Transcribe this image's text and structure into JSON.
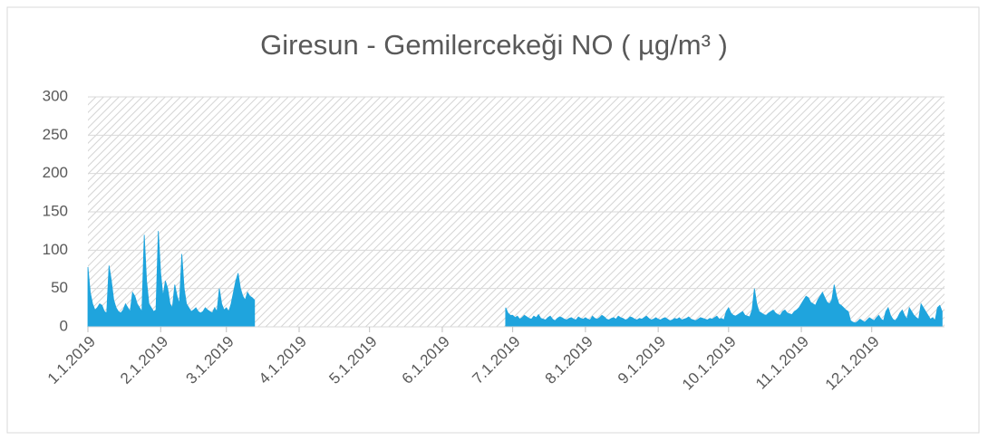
{
  "chart_data": {
    "type": "area",
    "title": "Giresun - Gemilercekeği NO ( µg/m³ )",
    "color": "#1fa4dd",
    "ylim": [
      0,
      300
    ],
    "yticks": [
      0,
      50,
      100,
      150,
      200,
      250,
      300
    ],
    "grid": true,
    "categories": [
      "1.1.2019",
      null,
      null,
      null,
      null,
      null,
      null,
      null,
      null,
      null,
      null,
      null,
      null,
      null,
      null,
      null,
      null,
      null,
      null,
      null,
      null,
      null,
      null,
      null,
      null,
      null,
      null,
      null,
      null,
      null,
      null,
      "2.1.2019",
      null,
      null,
      null,
      null,
      null,
      null,
      null,
      null,
      null,
      null,
      null,
      null,
      null,
      null,
      null,
      null,
      null,
      null,
      null,
      null,
      null,
      null,
      null,
      null,
      null,
      null,
      null,
      "3.1.2019",
      null,
      null,
      null,
      null,
      null,
      null,
      null,
      null,
      null,
      null,
      null,
      null,
      null,
      null,
      null,
      null,
      null,
      null,
      null,
      null,
      null,
      null,
      null,
      null,
      null,
      null,
      null,
      null,
      null,
      null,
      "4.1.2019",
      null,
      null,
      null,
      null,
      null,
      null,
      null,
      null,
      null,
      null,
      null,
      null,
      null,
      null,
      null,
      null,
      null,
      null,
      null,
      null,
      null,
      null,
      null,
      null,
      null,
      null,
      null,
      null,
      null,
      "5.1.2019",
      null,
      null,
      null,
      null,
      null,
      null,
      null,
      null,
      null,
      null,
      null,
      null,
      null,
      null,
      null,
      null,
      null,
      null,
      null,
      null,
      null,
      null,
      null,
      null,
      null,
      null,
      null,
      null,
      null,
      null,
      "6.1.2019",
      null,
      null,
      null,
      null,
      null,
      null,
      null,
      null,
      null,
      null,
      null,
      null,
      null,
      null,
      null,
      null,
      null,
      null,
      null,
      null,
      null,
      null,
      null,
      null,
      null,
      null,
      null,
      null,
      null,
      "7.1.2019",
      null,
      null,
      null,
      null,
      null,
      null,
      null,
      null,
      null,
      null,
      null,
      null,
      null,
      null,
      null,
      null,
      null,
      null,
      null,
      null,
      null,
      null,
      null,
      null,
      null,
      null,
      null,
      null,
      null,
      null,
      "8.1.2019",
      null,
      null,
      null,
      null,
      null,
      null,
      null,
      null,
      null,
      null,
      null,
      null,
      null,
      null,
      null,
      null,
      null,
      null,
      null,
      null,
      null,
      null,
      null,
      null,
      null,
      null,
      null,
      null,
      null,
      null,
      "9.1.2019",
      null,
      null,
      null,
      null,
      null,
      null,
      null,
      null,
      null,
      null,
      null,
      null,
      null,
      null,
      null,
      null,
      null,
      null,
      null,
      null,
      null,
      null,
      null,
      null,
      null,
      null,
      null,
      null,
      null,
      "10.1.2019",
      null,
      null,
      null,
      null,
      null,
      null,
      null,
      null,
      null,
      null,
      null,
      null,
      null,
      null,
      null,
      null,
      null,
      null,
      null,
      null,
      null,
      null,
      null,
      null,
      null,
      null,
      null,
      null,
      null,
      null,
      "11.1.2019",
      null,
      null,
      null,
      null,
      null,
      null,
      null,
      null,
      null,
      null,
      null,
      null,
      null,
      null,
      null,
      null,
      null,
      null,
      null,
      null,
      null,
      null,
      null,
      null,
      null,
      null,
      null,
      null,
      null,
      "12.1.2019",
      null,
      null,
      null,
      null,
      null,
      null,
      null,
      null,
      null,
      null,
      null,
      null,
      null,
      null,
      null,
      null,
      null,
      null,
      null,
      null,
      null,
      null,
      null,
      null,
      null,
      null,
      null,
      null,
      null,
      null
    ],
    "values": [
      78,
      45,
      30,
      22,
      25,
      30,
      28,
      20,
      18,
      80,
      60,
      35,
      25,
      20,
      18,
      22,
      30,
      25,
      20,
      45,
      40,
      30,
      25,
      20,
      120,
      60,
      30,
      25,
      20,
      22,
      125,
      70,
      40,
      60,
      50,
      30,
      25,
      55,
      40,
      30,
      95,
      50,
      30,
      25,
      20,
      22,
      25,
      20,
      18,
      20,
      25,
      22,
      20,
      18,
      25,
      20,
      50,
      30,
      22,
      25,
      20,
      30,
      45,
      60,
      70,
      50,
      40,
      35,
      45,
      40,
      38,
      35,
      null,
      null,
      null,
      null,
      null,
      null,
      null,
      null,
      null,
      null,
      null,
      null,
      null,
      null,
      null,
      null,
      null,
      null,
      null,
      null,
      null,
      null,
      null,
      null,
      null,
      null,
      null,
      null,
      null,
      null,
      null,
      null,
      null,
      null,
      null,
      null,
      null,
      null,
      null,
      null,
      null,
      null,
      null,
      null,
      null,
      null,
      null,
      null,
      null,
      null,
      null,
      null,
      null,
      null,
      null,
      null,
      null,
      null,
      null,
      null,
      null,
      null,
      null,
      null,
      null,
      null,
      null,
      null,
      null,
      null,
      null,
      null,
      null,
      null,
      null,
      null,
      null,
      null,
      null,
      null,
      null,
      null,
      null,
      null,
      null,
      null,
      null,
      null,
      null,
      null,
      null,
      null,
      null,
      null,
      null,
      null,
      null,
      null,
      null,
      null,
      null,
      null,
      null,
      null,
      null,
      null,
      25,
      18,
      15,
      15,
      12,
      14,
      10,
      12,
      15,
      13,
      11,
      10,
      14,
      12,
      16,
      11,
      10,
      9,
      12,
      14,
      10,
      8,
      11,
      13,
      12,
      10,
      9,
      11,
      12,
      10,
      9,
      13,
      11,
      10,
      12,
      10,
      9,
      14,
      11,
      10,
      12,
      15,
      13,
      10,
      9,
      11,
      12,
      10,
      14,
      12,
      11,
      9,
      10,
      13,
      12,
      10,
      9,
      11,
      10,
      12,
      14,
      11,
      9,
      10,
      12,
      10,
      9,
      11,
      12,
      10,
      8,
      9,
      11,
      10,
      12,
      9,
      10,
      11,
      13,
      10,
      9,
      8,
      10,
      12,
      11,
      10,
      9,
      11,
      10,
      12,
      14,
      10,
      11,
      9,
      20,
      25,
      18,
      15,
      14,
      16,
      18,
      20,
      15,
      14,
      13,
      22,
      50,
      30,
      20,
      18,
      16,
      15,
      18,
      20,
      22,
      18,
      16,
      15,
      20,
      22,
      18,
      17,
      16,
      20,
      22,
      25,
      30,
      35,
      40,
      38,
      32,
      30,
      28,
      35,
      40,
      45,
      38,
      32,
      30,
      35,
      55,
      40,
      30,
      28,
      25,
      22,
      20,
      8,
      6,
      5,
      7,
      10,
      8,
      6,
      9,
      12,
      10,
      8,
      12,
      15,
      10,
      8,
      20,
      25,
      15,
      10,
      8,
      12,
      18,
      22,
      15,
      10,
      25,
      20,
      15,
      12,
      10,
      30,
      25,
      20,
      15,
      10,
      12,
      8,
      25,
      28,
      20
    ]
  }
}
